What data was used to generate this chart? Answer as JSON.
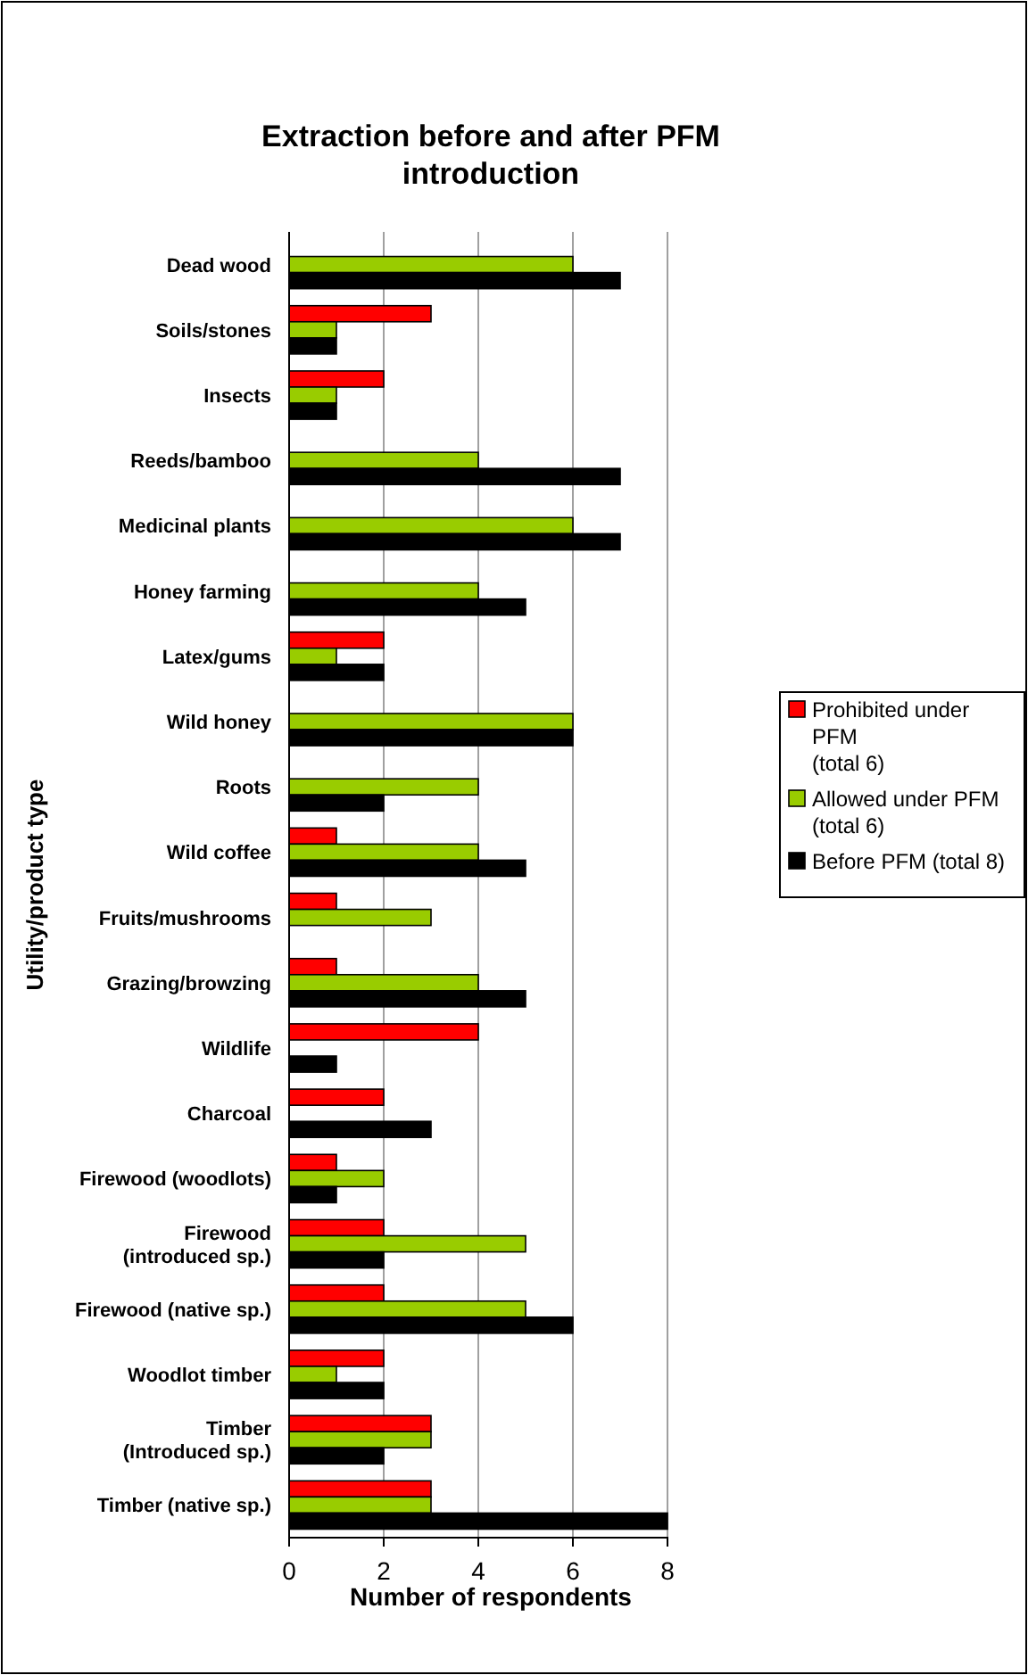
{
  "chart_data": {
    "type": "bar",
    "orientation": "horizontal",
    "title": "Extraction before and after PFM introduction",
    "xlabel": "Number of respondents",
    "ylabel": "Utility/product type",
    "categories": [
      "Dead wood",
      "Soils/stones",
      "Insects",
      "Reeds/bamboo",
      "Medicinal plants",
      "Honey farming",
      "Latex/gums",
      "Wild honey",
      "Roots",
      "Wild coffee",
      "Fruits/mushrooms",
      "Grazing/browzing",
      "Wildlife",
      "Charcoal",
      "Firewood (woodlots)",
      "Firewood (introduced sp.)",
      "Firewood (native sp.)",
      "Woodlot timber",
      "Timber (Introduced sp.)",
      "Timber (native sp.)"
    ],
    "series": [
      {
        "name": "Prohibited under PFM (total 6)",
        "color": "#ff0000",
        "values": [
          0,
          3,
          2,
          0,
          0,
          0,
          2,
          0,
          0,
          1,
          1,
          1,
          4,
          2,
          1,
          2,
          2,
          2,
          3,
          3
        ]
      },
      {
        "name": "Allowed under PFM (total 6)",
        "color": "#99cc00",
        "values": [
          6,
          1,
          1,
          4,
          6,
          4,
          1,
          6,
          4,
          4,
          3,
          4,
          0,
          0,
          2,
          5,
          5,
          1,
          3,
          3
        ]
      },
      {
        "name": "Before PFM (total 8)",
        "color": "#000000",
        "values": [
          7,
          1,
          1,
          7,
          7,
          5,
          2,
          6,
          2,
          5,
          0,
          5,
          1,
          3,
          1,
          2,
          6,
          2,
          2,
          8
        ]
      }
    ],
    "xlim": [
      0,
      8
    ],
    "xticks": [
      0,
      2,
      4,
      6,
      8
    ],
    "grid": "x",
    "legend": "right"
  }
}
